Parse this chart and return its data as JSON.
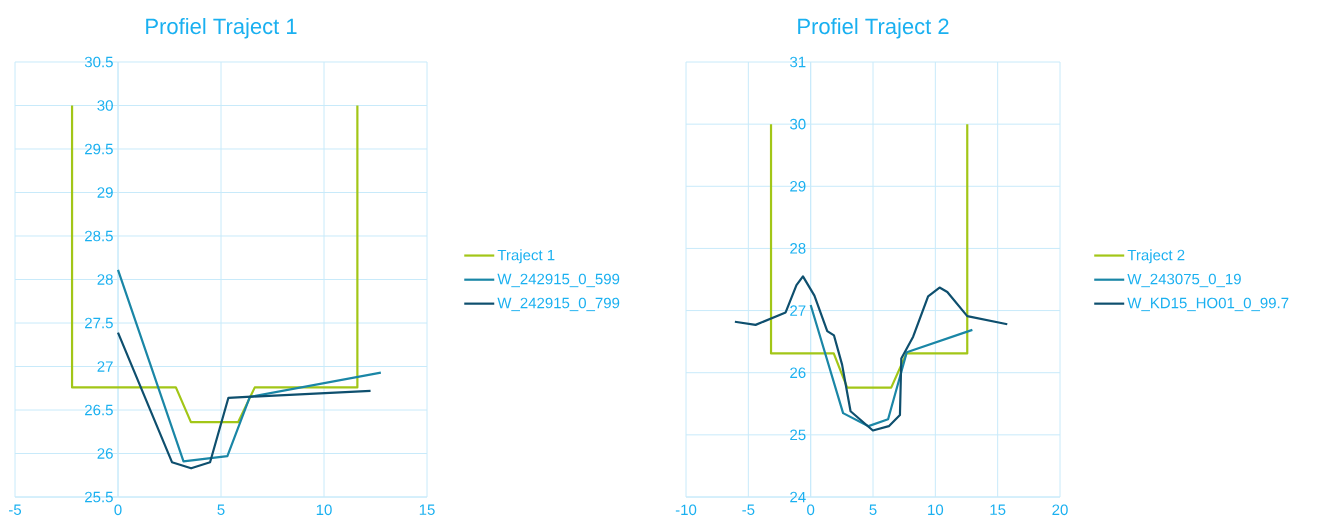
{
  "chart_data": [
    {
      "type": "line",
      "title": "Profiel Traject 1",
      "xlim": [
        -5,
        15
      ],
      "ylim": [
        25.5,
        30.5
      ],
      "xticks": [
        -5,
        0,
        5,
        10,
        15
      ],
      "yticks": [
        25.5,
        26,
        26.5,
        27,
        27.5,
        28,
        28.5,
        29,
        29.5,
        30,
        30.5
      ],
      "grid": true,
      "legend": "right",
      "series": [
        {
          "name": "Traject 1",
          "color": "#a2c617",
          "x": [
            -2.23,
            -2.23,
            2.81,
            3.54,
            5.83,
            6.64,
            11.62,
            11.62
          ],
          "values": [
            30,
            26.76,
            26.76,
            26.36,
            26.36,
            26.76,
            26.76,
            30
          ]
        },
        {
          "name": "W_242915_0_599",
          "color": "#1a86a6",
          "x": [
            0,
            3.18,
            5.31,
            6.4,
            12.76
          ],
          "values": [
            28.11,
            25.91,
            25.97,
            26.65,
            26.93
          ]
        },
        {
          "name": "W_242915_0_799",
          "color": "#0e4f6e",
          "x": [
            0,
            2.62,
            3.55,
            4.47,
            5.36,
            12.26
          ],
          "values": [
            27.39,
            25.9,
            25.83,
            25.9,
            26.64,
            26.72
          ]
        }
      ]
    },
    {
      "type": "line",
      "title": "Profiel Traject 2",
      "xlim": [
        -10,
        20
      ],
      "ylim": [
        24,
        31
      ],
      "xticks": [
        -10,
        -5,
        0,
        5,
        10,
        15,
        20
      ],
      "yticks": [
        24,
        25,
        26,
        27,
        28,
        29,
        30,
        31
      ],
      "grid": true,
      "legend": "right",
      "series": [
        {
          "name": "Traject 2",
          "color": "#a2c617",
          "x": [
            -3.18,
            -3.18,
            1.85,
            2.93,
            6.46,
            7.68,
            12.56,
            12.56
          ],
          "values": [
            30,
            26.31,
            26.31,
            25.76,
            25.76,
            26.31,
            26.31,
            30
          ]
        },
        {
          "name": "W_243075_0_19",
          "color": "#1a86a6",
          "x": [
            0,
            2.6,
            4.64,
            6.21,
            7.71,
            12.97
          ],
          "values": [
            27.09,
            25.35,
            25.14,
            25.25,
            26.33,
            26.69
          ]
        },
        {
          "name": "W_KD15_HO01_0_99.7",
          "color": "#0e4f6e",
          "x": [
            -6.08,
            -4.42,
            -2.01,
            -1.14,
            -0.62,
            0.3,
            1.33,
            1.87,
            2.52,
            3.2,
            4.99,
            6.27,
            7.16,
            7.27,
            8.22,
            9.42,
            10.34,
            10.96,
            12.56,
            15.77
          ],
          "values": [
            26.82,
            26.77,
            26.97,
            27.41,
            27.55,
            27.24,
            26.67,
            26.6,
            26.13,
            25.38,
            25.07,
            25.14,
            25.32,
            26.23,
            26.58,
            27.23,
            27.37,
            27.3,
            26.91,
            26.78
          ]
        }
      ]
    }
  ]
}
